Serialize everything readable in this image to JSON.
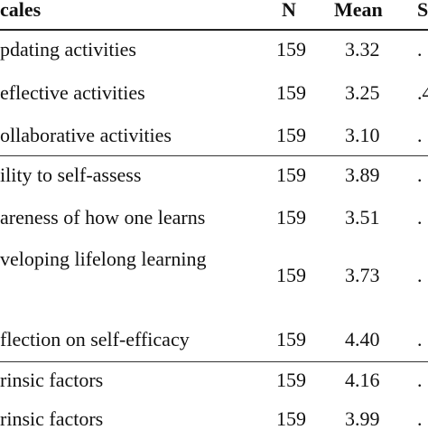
{
  "header": {
    "scales": "cales",
    "n": "N",
    "mean": "Mean",
    "sd": "S"
  },
  "rows": [
    {
      "label": "pdating activities",
      "n": "159",
      "mean": "3.32",
      "sd": "."
    },
    {
      "label": "eflective activities",
      "n": "159",
      "mean": "3.25",
      "sd": ".4"
    },
    {
      "label": "ollaborative activities",
      "n": "159",
      "mean": "3.10",
      "sd": "."
    },
    {
      "label": "ility to self-assess",
      "n": "159",
      "mean": "3.89",
      "sd": "."
    },
    {
      "label": "areness of how one learns",
      "n": "159",
      "mean": "3.51",
      "sd": "."
    },
    {
      "label": "veloping lifelong learning",
      "n": "159",
      "mean": "3.73",
      "sd": "."
    },
    {
      "label": "flection on self-efficacy",
      "n": "159",
      "mean": "4.40",
      "sd": "."
    },
    {
      "label": "rinsic factors",
      "n": "159",
      "mean": "4.16",
      "sd": "."
    },
    {
      "label": "rinsic factors",
      "n": "159",
      "mean": "3.99",
      "sd": "."
    }
  ]
}
